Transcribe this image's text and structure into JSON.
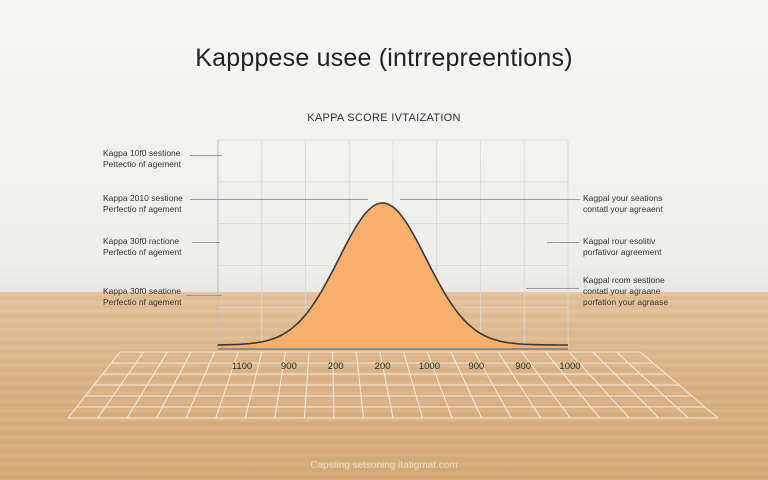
{
  "header": {
    "title": "Kapppese usee (intrrepreentions)",
    "subtitle": "KAPPA SCORE IVTAIZATION"
  },
  "left_labels": [
    {
      "line1": "Kagpa 10f0 sestione",
      "line2": "Pettectio nf agement"
    },
    {
      "line1": "Kappa 2010 sestione",
      "line2": "Perfectio nf agement"
    },
    {
      "line1": "Kappa 30f0 ractione",
      "line2": "Perfectio nf agement"
    },
    {
      "line1": "Kappa 30f0 seatione",
      "line2": "Perfectio nf agement"
    }
  ],
  "right_labels": [
    {
      "line1": "Kagpal your seations",
      "line2": "contatl your agreaent"
    },
    {
      "line1": "Kagpal rour esolitiv",
      "line2": "porfativor agreement"
    },
    {
      "line1": "Kagpal rcom sestione",
      "line2": "contatl your agraane",
      "line3": "porfation your agraase"
    }
  ],
  "watermark": "Capsting setsoning itatigmat.com",
  "colors": {
    "curve_fill": "#f8b06c",
    "curve_stroke": "#3a3a3a",
    "grid": "#d8d8d8",
    "floor_grid": "#f4ead9"
  },
  "chart_data": {
    "type": "area",
    "title": "KAPPA SCORE IVTAIZATION",
    "xlabel": "",
    "ylabel": "",
    "tick_labels": [
      "1100",
      "900",
      "200",
      "200",
      "1000",
      "900",
      "900",
      "1000"
    ],
    "x": [
      0,
      1,
      2,
      3,
      4,
      5,
      6,
      7
    ],
    "series": [
      {
        "values": [
          0.02,
          0.12,
          0.55,
          1.0,
          0.6,
          0.15,
          0.05,
          0.02
        ]
      }
    ],
    "ylim": [
      0,
      1
    ],
    "grid": true,
    "legend": "none"
  }
}
